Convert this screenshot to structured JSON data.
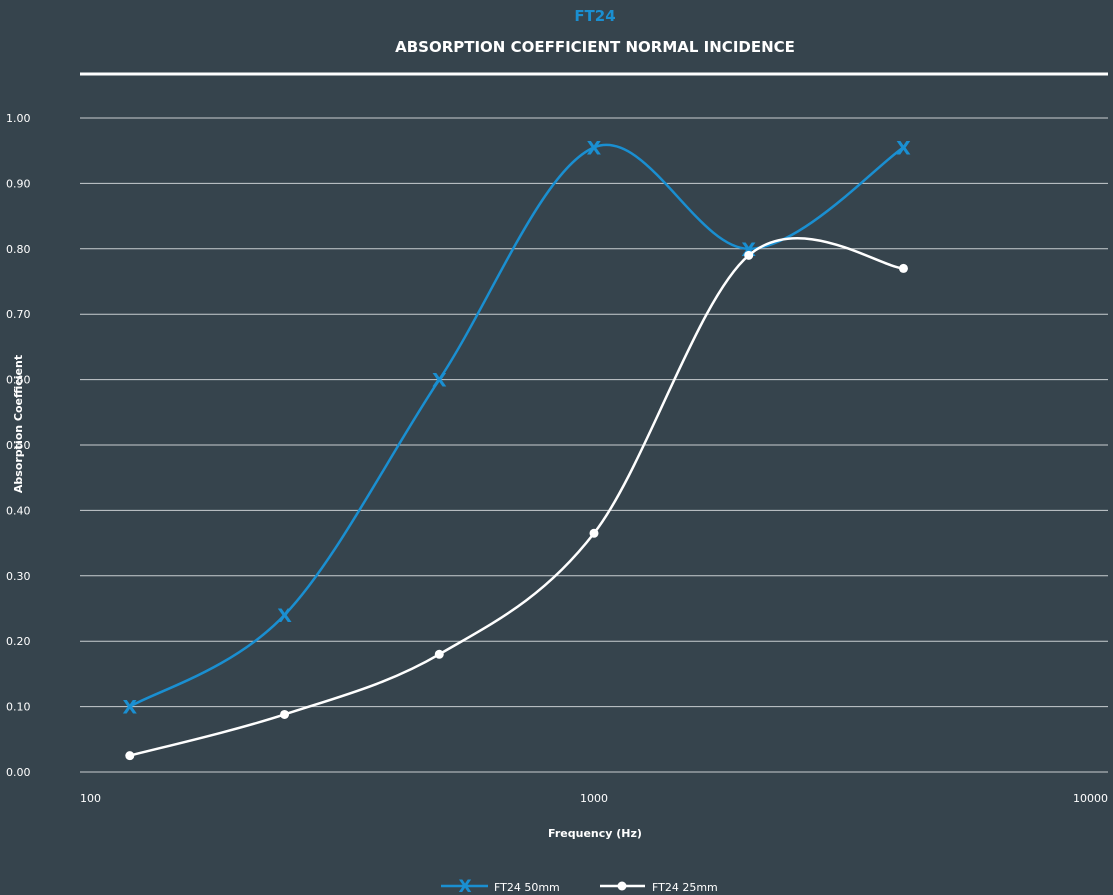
{
  "chart_data": {
    "type": "line",
    "title": "FT24",
    "subtitle": "ABSORPTION COEFFICIENT NORMAL INCIDENCE",
    "xlabel": "Frequency (Hz)",
    "ylabel": "Absorption Coefficient",
    "x_scale": "log",
    "xlim": [
      100,
      10000
    ],
    "ylim": [
      0,
      1
    ],
    "x_ticks": [
      "100",
      "1000",
      "10000"
    ],
    "x_tick_values": [
      100,
      1000,
      10000
    ],
    "y_ticks": [
      "0.00",
      "0.10",
      "0.20",
      "0.30",
      "0.40",
      "0.50",
      "0.60",
      "0.70",
      "0.80",
      "0.90",
      "1.00"
    ],
    "grid": "horizontal",
    "legend_position": "bottom-center",
    "series": [
      {
        "name": "FT24 50mm",
        "color": "#1a8fd1",
        "marker": "x",
        "x": [
          125,
          250,
          500,
          1000,
          2000,
          4000
        ],
        "y": [
          0.1,
          0.24,
          0.6,
          0.955,
          0.8,
          0.955
        ]
      },
      {
        "name": "FT24 25mm",
        "color": "#ffffff",
        "marker": "circle",
        "x": [
          125,
          250,
          500,
          1000,
          2000,
          4000
        ],
        "y": [
          0.025,
          0.088,
          0.18,
          0.365,
          0.79,
          0.77
        ]
      }
    ]
  }
}
